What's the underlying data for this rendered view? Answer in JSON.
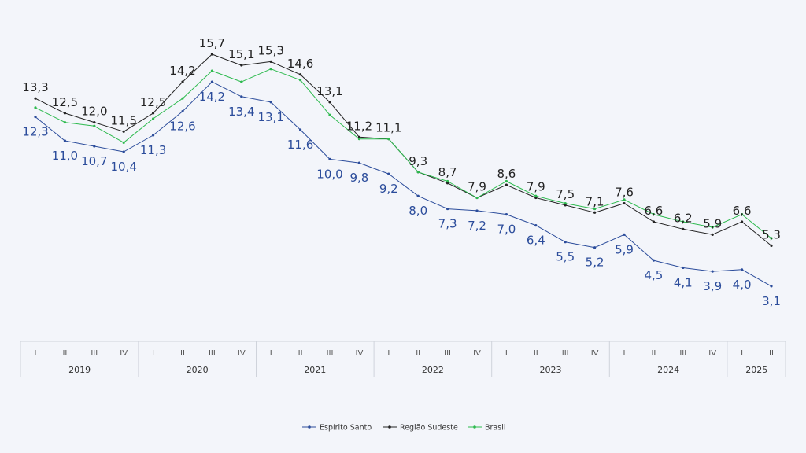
{
  "chart_data": {
    "type": "line",
    "title": "",
    "xlabel": "",
    "ylabel": "",
    "quarters": [
      "I",
      "II",
      "III",
      "IV",
      "I",
      "II",
      "III",
      "IV",
      "I",
      "II",
      "III",
      "IV",
      "I",
      "II",
      "III",
      "IV",
      "I",
      "II",
      "III",
      "IV",
      "I",
      "II",
      "III",
      "IV",
      "I",
      "II"
    ],
    "year_groups": [
      {
        "label": "2019",
        "count": 4
      },
      {
        "label": "2020",
        "count": 4
      },
      {
        "label": "2021",
        "count": 4
      },
      {
        "label": "2022",
        "count": 4
      },
      {
        "label": "2023",
        "count": 4
      },
      {
        "label": "2024",
        "count": 4
      },
      {
        "label": "2025",
        "count": 2
      }
    ],
    "ylim": [
      2.5,
      16.5
    ],
    "series": [
      {
        "name": "Espírito Santo",
        "color": "#2b4c9b",
        "values": [
          12.3,
          11.0,
          10.7,
          10.4,
          11.3,
          12.6,
          14.2,
          13.4,
          13.1,
          11.6,
          10.0,
          9.8,
          9.2,
          8.0,
          7.3,
          7.2,
          7.0,
          6.4,
          5.5,
          5.2,
          5.9,
          4.5,
          4.1,
          3.9,
          4.0,
          3.1
        ],
        "labels": [
          "12,3",
          "11,0",
          "10,7",
          "10,4",
          "11,3",
          "12,6",
          "14,2",
          "13,4",
          "13,1",
          "11,6",
          "10,0",
          "9,8",
          "9,2",
          "8,0",
          "7,3",
          "7,2",
          "7,0",
          "6,4",
          "5,5",
          "5,2",
          "5,9",
          "4,5",
          "4,1",
          "3,9",
          "4,0",
          "3,1"
        ]
      },
      {
        "name": "Região Sudeste",
        "color": "#222222",
        "values": [
          13.3,
          12.5,
          12.0,
          11.5,
          12.5,
          14.2,
          15.7,
          15.1,
          15.3,
          14.6,
          13.1,
          11.2,
          11.1,
          9.3,
          8.7,
          7.9,
          8.6,
          7.9,
          7.5,
          7.1,
          7.6,
          6.6,
          6.2,
          5.9,
          6.6,
          5.3
        ],
        "labels": [
          "13,3",
          "12,5",
          "12,0",
          "11,5",
          "12,5",
          "14,2",
          "15,7",
          "15,1",
          "15,3",
          "14,6",
          "13,1",
          "11,2",
          "11,1",
          "9,3",
          "8,7",
          "7,9",
          "8,6",
          "7,9",
          "7,5",
          "7,1",
          "7,6",
          "6,6",
          "6,2",
          "5,9",
          "6,6",
          "5,3"
        ]
      },
      {
        "name": "Brasil",
        "color": "#2dba4e",
        "values": [
          12.8,
          12.0,
          11.8,
          10.9,
          12.2,
          13.3,
          14.8,
          14.2,
          14.9,
          14.3,
          12.4,
          11.1,
          11.1,
          9.3,
          8.8,
          7.9,
          8.8,
          8.0,
          7.6,
          7.3,
          7.8,
          7.0,
          6.6,
          6.3,
          7.0,
          5.7
        ],
        "labels": []
      }
    ],
    "legend_position": "bottom-center",
    "grid": false
  }
}
